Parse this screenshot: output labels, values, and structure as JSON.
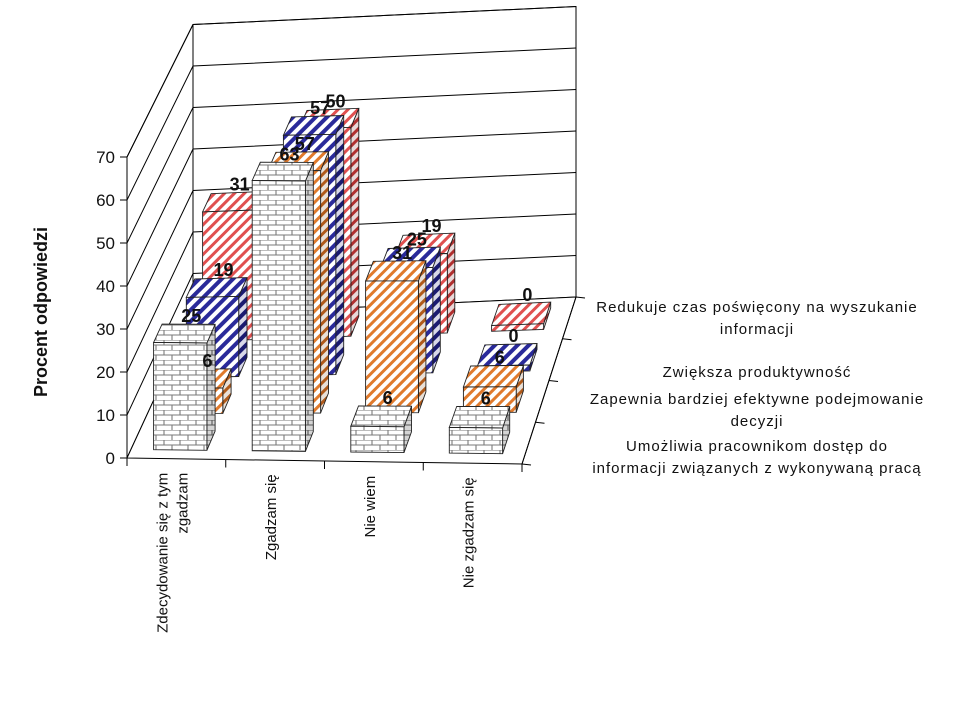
{
  "colors": {
    "series_red": "#e05050",
    "series_blue": "#2a2a9a",
    "series_orange": "#e07a2c",
    "series_gray": "#8a8a8a",
    "grid": "#000000"
  },
  "chart_data": {
    "type": "bar",
    "variant": "3d-clustered-depth",
    "title": "",
    "ylabel": "Procent odpowiedzi",
    "xlabel": "",
    "ylim": [
      0,
      70
    ],
    "yticks": [
      0,
      10,
      20,
      30,
      40,
      50,
      60,
      70
    ],
    "grid": true,
    "legend_placement": "right (series names on depth axis)",
    "categories": [
      [
        "Zdecydowanie się z tym",
        "zgadzam"
      ],
      [
        "Zgadzam się"
      ],
      [
        "Nie wiem"
      ],
      [
        "Nie zgadzam się"
      ]
    ],
    "series": [
      {
        "name": [
          "Redukuje czas poświęcony na wyszukanie",
          "informacji"
        ],
        "pattern": "diagonal-red",
        "values": [
          31,
          50,
          19,
          0
        ]
      },
      {
        "name": [
          "Zwiększa produktywność"
        ],
        "pattern": "diagonal-blue",
        "values": [
          19,
          57,
          25,
          0
        ]
      },
      {
        "name": [
          "Zapewnia bardziej efektywne podejmowanie",
          "decyzji"
        ],
        "pattern": "diagonal-orange",
        "values": [
          6,
          57,
          31,
          6
        ]
      },
      {
        "name": [
          "Umożliwia pracownikom dostęp do",
          "informacji związanych z wykonywaną pracą"
        ],
        "pattern": "brick-gray",
        "values": [
          25,
          63,
          6,
          6
        ]
      }
    ]
  }
}
